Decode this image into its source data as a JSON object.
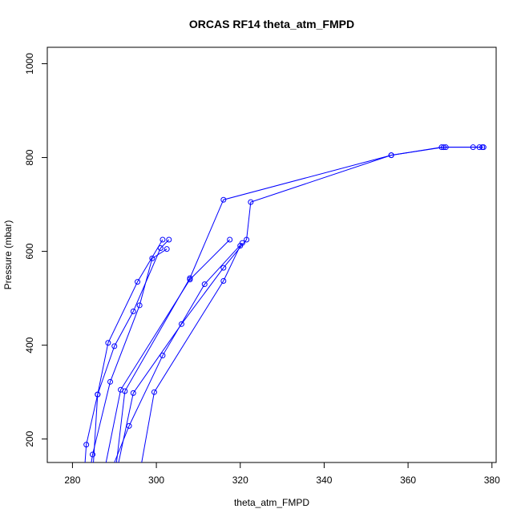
{
  "chart_data": {
    "type": "line",
    "title": "ORCAS RF14 theta_atm_FMPD",
    "xlabel": "theta_atm_FMPD",
    "ylabel": "Pressure (mbar)",
    "xlim": [
      274,
      381
    ],
    "ylim": [
      1035,
      150
    ],
    "y_reversed": true,
    "xticks": [
      280,
      300,
      320,
      340,
      360,
      380
    ],
    "yticks": [
      200,
      400,
      600,
      800,
      1000
    ],
    "grid": false,
    "legend": "none",
    "colors": {
      "series": "#0000ff"
    },
    "series": [
      {
        "points": [
          [
            283.0,
            150
          ],
          [
            283.3,
            188
          ],
          [
            286.0,
            295
          ],
          [
            288.5,
            405
          ],
          [
            295.5,
            535
          ],
          [
            301.5,
            625
          ]
        ]
      },
      {
        "points": [
          [
            285.0,
            150
          ],
          [
            286.0,
            295
          ],
          [
            290.0,
            398
          ],
          [
            294.5,
            472
          ],
          [
            301.0,
            607
          ],
          [
            303.0,
            625
          ]
        ]
      },
      {
        "points": [
          [
            284.5,
            150
          ],
          [
            284.8,
            167
          ],
          [
            289.0,
            322
          ],
          [
            296.0,
            485
          ],
          [
            299.0,
            585
          ],
          [
            302.5,
            605
          ]
        ]
      },
      {
        "points": [
          [
            288.0,
            150
          ],
          [
            291.5,
            305
          ],
          [
            308.0,
            540
          ],
          [
            317.5,
            625
          ]
        ]
      },
      {
        "points": [
          [
            290.5,
            150
          ],
          [
            292.5,
            302
          ],
          [
            308.0,
            543
          ],
          [
            316.0,
            710
          ],
          [
            356.0,
            805
          ],
          [
            368.0,
            822
          ],
          [
            369.0,
            822
          ],
          [
            377.0,
            822
          ],
          [
            377.7,
            822
          ]
        ]
      },
      {
        "points": [
          [
            291.0,
            150
          ],
          [
            294.5,
            298
          ],
          [
            306.0,
            445
          ],
          [
            316.0,
            565
          ],
          [
            321.5,
            625
          ],
          [
            322.5,
            705
          ],
          [
            356.0,
            805
          ],
          [
            368.5,
            822
          ],
          [
            375.5,
            822
          ],
          [
            378.0,
            822
          ]
        ]
      },
      {
        "points": [
          [
            290.0,
            150
          ],
          [
            293.5,
            228
          ],
          [
            301.5,
            378
          ],
          [
            311.5,
            530
          ],
          [
            320.5,
            618
          ]
        ]
      },
      {
        "points": [
          [
            296.5,
            150
          ],
          [
            299.5,
            300
          ],
          [
            316.0,
            537
          ],
          [
            320.0,
            612
          ]
        ]
      }
    ]
  }
}
